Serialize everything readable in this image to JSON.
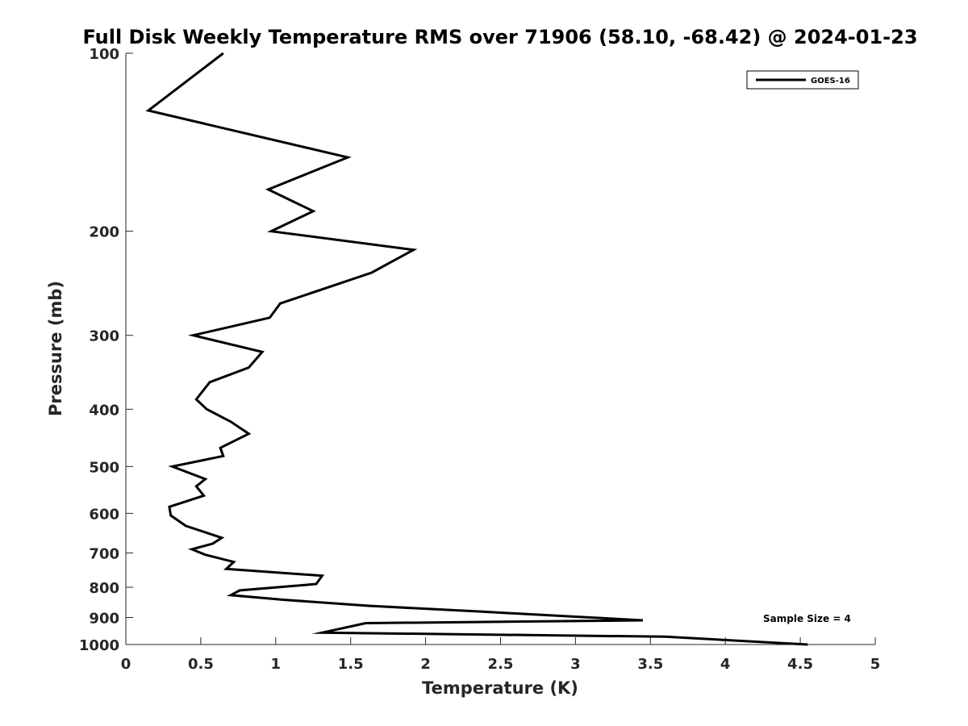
{
  "chart_data": {
    "type": "line",
    "title": "Full Disk Weekly Temperature RMS over 71906 (58.10, -68.42) @ 2024-01-23",
    "xlabel": "Temperature (K)",
    "ylabel": "Pressure (mb)",
    "xlim": [
      0,
      5
    ],
    "ylim": [
      100,
      1000
    ],
    "y_scale": "log",
    "y_reversed": true,
    "x_ticks": [
      "0",
      "0.5",
      "1",
      "1.5",
      "2",
      "2.5",
      "3",
      "3.5",
      "4",
      "4.5",
      "5"
    ],
    "x_tick_values": [
      0,
      0.5,
      1,
      1.5,
      2,
      2.5,
      3,
      3.5,
      4,
      4.5,
      5
    ],
    "y_ticks": [
      "100",
      "200",
      "300",
      "400",
      "500",
      "600",
      "700",
      "800",
      "900",
      "1000"
    ],
    "y_tick_values": [
      100,
      200,
      300,
      400,
      500,
      600,
      700,
      800,
      900,
      1000
    ],
    "grid": false,
    "legend_position": "top-right",
    "series": [
      {
        "name": "GOES-16",
        "color": "#000000",
        "points": [
          [
            0.65,
            100
          ],
          [
            0.15,
            125
          ],
          [
            1.48,
            150
          ],
          [
            0.95,
            170
          ],
          [
            1.25,
            185
          ],
          [
            0.97,
            200
          ],
          [
            1.92,
            215
          ],
          [
            1.64,
            235
          ],
          [
            1.03,
            265
          ],
          [
            0.96,
            280
          ],
          [
            0.45,
            300
          ],
          [
            0.91,
            320
          ],
          [
            0.82,
            340
          ],
          [
            0.56,
            360
          ],
          [
            0.47,
            385
          ],
          [
            0.54,
            400
          ],
          [
            0.7,
            420
          ],
          [
            0.82,
            440
          ],
          [
            0.63,
            465
          ],
          [
            0.65,
            480
          ],
          [
            0.31,
            500
          ],
          [
            0.53,
            525
          ],
          [
            0.47,
            540
          ],
          [
            0.52,
            560
          ],
          [
            0.29,
            585
          ],
          [
            0.3,
            605
          ],
          [
            0.4,
            630
          ],
          [
            0.64,
            660
          ],
          [
            0.58,
            675
          ],
          [
            0.44,
            690
          ],
          [
            0.53,
            705
          ],
          [
            0.72,
            725
          ],
          [
            0.67,
            745
          ],
          [
            1.31,
            765
          ],
          [
            1.27,
            790
          ],
          [
            0.76,
            810
          ],
          [
            0.7,
            825
          ],
          [
            1.05,
            840
          ],
          [
            1.62,
            860
          ],
          [
            2.38,
            880
          ],
          [
            3.45,
            910
          ],
          [
            1.6,
            920
          ],
          [
            1.31,
            955
          ],
          [
            2.1,
            960
          ],
          [
            3.6,
            970
          ],
          [
            4.55,
            1000
          ]
        ]
      }
    ]
  },
  "annotations": {
    "sample_size": "Sample Size = 4"
  }
}
